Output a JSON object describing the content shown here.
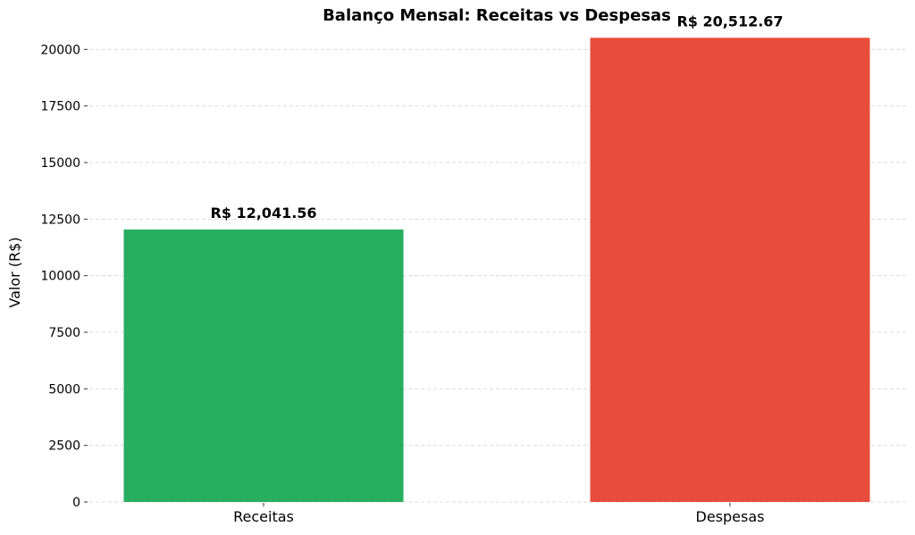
{
  "chart_data": {
    "type": "bar",
    "title": "Balanço Mensal: Receitas vs Despesas",
    "xlabel": "",
    "ylabel": "Valor (R$)",
    "categories": [
      "Receitas",
      "Despesas"
    ],
    "values": [
      12041.56,
      20512.67
    ],
    "data_labels": [
      "R$ 12,041.56",
      "R$ 20,512.67"
    ],
    "colors": [
      "#27ae60",
      "#e74c3c"
    ],
    "ylim": [
      0,
      21000
    ],
    "yticks": [
      0,
      2500,
      5000,
      7500,
      10000,
      12500,
      15000,
      17500,
      20000
    ],
    "ytick_labels": [
      "0",
      "2500",
      "5000",
      "7500",
      "10000",
      "12500",
      "15000",
      "17500",
      "20000"
    ],
    "grid": "y-dashed",
    "legend": "none"
  }
}
